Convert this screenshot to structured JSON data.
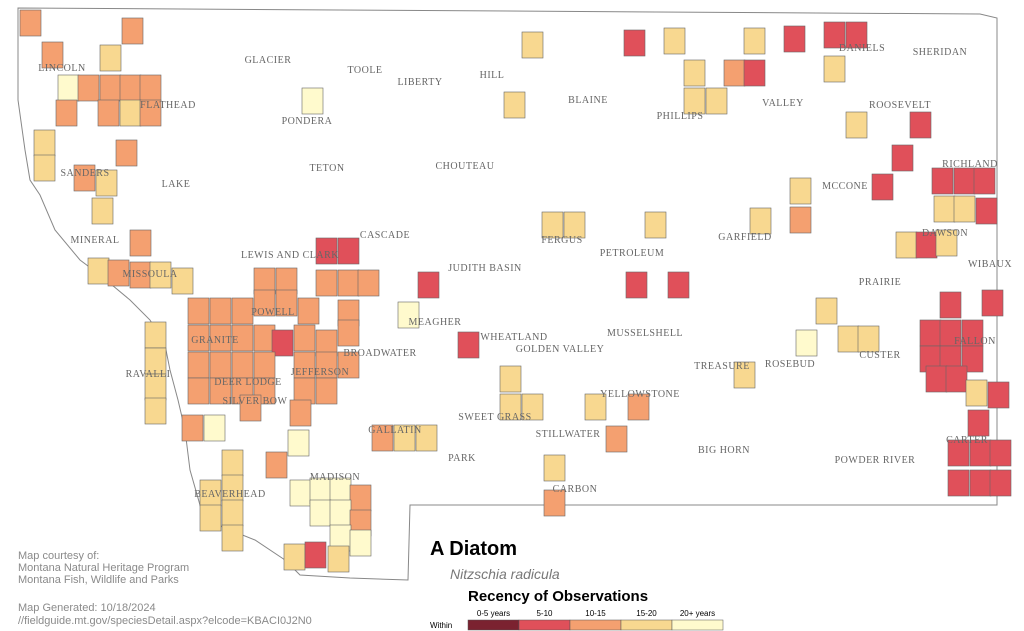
{
  "map": {
    "title": "A Diatom",
    "subtitle": "Nitzschia radicula",
    "counties": [
      "LINCOLN",
      "FLATHEAD",
      "GLACIER",
      "TOOLE",
      "LIBERTY",
      "HILL",
      "BLAINE",
      "PHILLIPS",
      "VALLEY",
      "DANIELS",
      "SHERIDAN",
      "ROOSEVELT",
      "PONDERA",
      "TETON",
      "CHOUTEAU",
      "SANDERS",
      "LAKE",
      "RICHLAND",
      "MCCONE",
      "MINERAL",
      "CASCADE",
      "LEWIS AND CLARK",
      "FERGUS",
      "PETROLEUM",
      "GARFIELD",
      "DAWSON",
      "WIBAUX",
      "MISSOULA",
      "JUDITH BASIN",
      "PRAIRIE",
      "MEAGHER",
      "POWELL",
      "WHEATLAND",
      "MUSSELSHELL",
      "GOLDEN VALLEY",
      "GRANITE",
      "BROADWATER",
      "FALLON",
      "RAVALLI",
      "DEER LODGE",
      "JEFFERSON",
      "TREASURE",
      "ROSEBUD",
      "CUSTER",
      "SILVER BOW",
      "YELLOWSTONE",
      "SWEET GRASS",
      "STILLWATER",
      "CARTER",
      "PARK",
      "BIG HORN",
      "POWDER RIVER",
      "GALLATIN",
      "MADISON",
      "CARBON",
      "BEAVERHEAD"
    ],
    "legend": {
      "title": "Recency of Observations",
      "prefix": "Within",
      "items": [
        {
          "label": "0-5 years",
          "color": "#7b2230"
        },
        {
          "label": "5-10",
          "color": "#e0505a"
        },
        {
          "label": "10-15",
          "color": "#f4a070"
        },
        {
          "label": "15-20",
          "color": "#f8d890"
        },
        {
          "label": "20+ years",
          "color": "#fffacd"
        }
      ]
    },
    "credits": [
      "Map courtesy of:",
      "Montana Natural Heritage Program",
      "Montana Fish, Wildlife and Parks"
    ],
    "generated": "Map Generated: 10/18/2024",
    "url": "//fieldguide.mt.gov/speciesDetail.aspx?elcode=KBACI0J2N0"
  }
}
